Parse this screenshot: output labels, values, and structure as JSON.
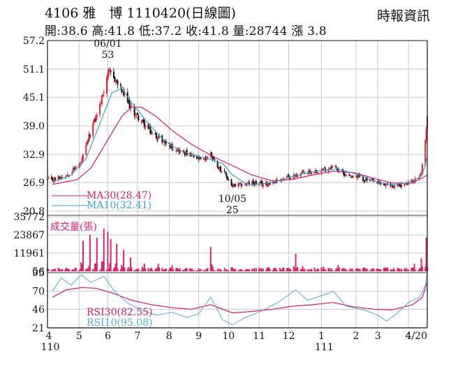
{
  "header": {
    "title": "4106 雅　博 1110420(日線圖)",
    "source": "時報資訊",
    "stats": "開:38.6 高:41.8 低:37.2 收:41.8 量:28744 漲 3.8"
  },
  "colors": {
    "up": "#e8243c",
    "down": "#111111",
    "ma30": "#d41e6e",
    "ma10": "#3aa0c8",
    "volume": "#d8246a",
    "rsi30": "#d41e6e",
    "rsi10": "#5aa8d8",
    "grid": "#c8c8c8"
  },
  "chart_data": [
    {
      "type": "candlestick",
      "panel": "price",
      "y_ticks": [
        "57.2",
        "51.1",
        "45.1",
        "39.0",
        "32.9",
        "26.9",
        "20.8"
      ],
      "ylim": [
        20.8,
        57.2
      ],
      "legend": [
        {
          "label": "MA30(28.47)",
          "color": "#d41e6e"
        },
        {
          "label": "MA10(32.41)",
          "color": "#3aa0c8"
        }
      ],
      "annotations": [
        {
          "text": "06/01",
          "date": "2021-06-01"
        },
        {
          "text": "53",
          "value": 53
        },
        {
          "text": "10/05",
          "date": "2021-10-05"
        },
        {
          "text": "25",
          "value": 25
        }
      ],
      "close_path": [
        [
          "2021-04-06",
          27.5
        ],
        [
          "2021-04-20",
          28.5
        ],
        [
          "2021-05-05",
          31.0
        ],
        [
          "2021-05-15",
          38.0
        ],
        [
          "2021-05-25",
          44.0
        ],
        [
          "2021-06-01",
          50.5
        ],
        [
          "2021-06-08",
          49.0
        ],
        [
          "2021-06-15",
          46.5
        ],
        [
          "2021-06-25",
          42.5
        ],
        [
          "2021-07-05",
          40.0
        ],
        [
          "2021-07-15",
          37.5
        ],
        [
          "2021-07-25",
          36.0
        ],
        [
          "2021-08-05",
          34.5
        ],
        [
          "2021-08-15",
          33.5
        ],
        [
          "2021-08-25",
          32.5
        ],
        [
          "2021-09-05",
          31.5
        ],
        [
          "2021-09-13",
          33.0
        ],
        [
          "2021-09-20",
          30.5
        ],
        [
          "2021-09-28",
          28.5
        ],
        [
          "2021-10-05",
          26.0
        ],
        [
          "2021-10-15",
          26.5
        ],
        [
          "2021-10-25",
          26.8
        ],
        [
          "2021-11-05",
          26.5
        ],
        [
          "2021-11-15",
          27.0
        ],
        [
          "2021-11-25",
          27.8
        ],
        [
          "2021-12-05",
          28.2
        ],
        [
          "2021-12-15",
          29.0
        ],
        [
          "2021-12-25",
          29.3
        ],
        [
          "2022-01-05",
          29.6
        ],
        [
          "2022-01-15",
          30.5
        ],
        [
          "2022-01-25",
          28.8
        ],
        [
          "2022-02-10",
          28.0
        ],
        [
          "2022-02-20",
          27.3
        ],
        [
          "2022-03-01",
          26.8
        ],
        [
          "2022-03-10",
          26.3
        ],
        [
          "2022-03-20",
          26.1
        ],
        [
          "2022-03-30",
          26.6
        ],
        [
          "2022-04-08",
          27.5
        ],
        [
          "2022-04-14",
          29.0
        ],
        [
          "2022-04-19",
          38.0
        ],
        [
          "2022-04-20",
          41.8
        ]
      ],
      "ma30_path": [
        [
          "2021-04-06",
          26.5
        ],
        [
          "2021-05-01",
          27.5
        ],
        [
          "2021-05-15",
          30.0
        ],
        [
          "2021-06-01",
          36.0
        ],
        [
          "2021-06-15",
          41.0
        ],
        [
          "2021-06-25",
          43.0
        ],
        [
          "2021-07-05",
          43.0
        ],
        [
          "2021-07-20",
          41.0
        ],
        [
          "2021-08-05",
          38.0
        ],
        [
          "2021-08-25",
          35.0
        ],
        [
          "2021-09-15",
          32.5
        ],
        [
          "2021-10-05",
          30.5
        ],
        [
          "2021-10-25",
          28.5
        ],
        [
          "2021-11-15",
          27.2
        ],
        [
          "2021-12-05",
          27.6
        ],
        [
          "2021-12-25",
          28.5
        ],
        [
          "2022-01-15",
          29.3
        ],
        [
          "2022-02-05",
          29.0
        ],
        [
          "2022-02-25",
          27.8
        ],
        [
          "2022-03-15",
          26.8
        ],
        [
          "2022-04-05",
          26.8
        ],
        [
          "2022-04-20",
          28.47
        ]
      ],
      "ma10_path": [
        [
          "2021-04-06",
          27.0
        ],
        [
          "2021-04-25",
          28.5
        ],
        [
          "2021-05-10",
          32.0
        ],
        [
          "2021-05-25",
          40.0
        ],
        [
          "2021-06-05",
          46.0
        ],
        [
          "2021-06-15",
          47.0
        ],
        [
          "2021-06-25",
          44.0
        ],
        [
          "2021-07-10",
          40.0
        ],
        [
          "2021-07-25",
          36.5
        ],
        [
          "2021-08-10",
          34.0
        ],
        [
          "2021-08-25",
          32.8
        ],
        [
          "2021-09-10",
          32.0
        ],
        [
          "2021-09-25",
          31.0
        ],
        [
          "2021-10-05",
          28.5
        ],
        [
          "2021-10-20",
          26.5
        ],
        [
          "2021-11-05",
          26.6
        ],
        [
          "2021-11-20",
          27.2
        ],
        [
          "2021-12-05",
          28.2
        ],
        [
          "2021-12-20",
          29.0
        ],
        [
          "2022-01-05",
          29.5
        ],
        [
          "2022-01-20",
          29.8
        ],
        [
          "2022-02-10",
          28.5
        ],
        [
          "2022-02-25",
          27.3
        ],
        [
          "2022-03-15",
          26.4
        ],
        [
          "2022-04-05",
          27.0
        ],
        [
          "2022-04-15",
          28.5
        ],
        [
          "2022-04-20",
          32.41
        ]
      ]
    },
    {
      "type": "bar",
      "panel": "volume",
      "legend": "成交量(張)",
      "y_ticks": [
        "35772",
        "23867",
        "11961",
        "56"
      ],
      "ylim": [
        56,
        35772
      ],
      "spikes": [
        [
          "2021-05-07",
          20000
        ],
        [
          "2021-05-14",
          24000
        ],
        [
          "2021-05-21",
          22000
        ],
        [
          "2021-05-28",
          28000
        ],
        [
          "2021-06-01",
          26000
        ],
        [
          "2021-06-04",
          21000
        ],
        [
          "2021-06-10",
          18000
        ],
        [
          "2021-06-17",
          14000
        ],
        [
          "2021-06-24",
          9000
        ],
        [
          "2021-07-08",
          5000
        ],
        [
          "2021-07-22",
          5000
        ],
        [
          "2021-08-05",
          4000
        ],
        [
          "2021-09-13",
          16000
        ],
        [
          "2021-10-05",
          2500
        ],
        [
          "2021-11-10",
          2500
        ],
        [
          "2021-12-08",
          11500
        ],
        [
          "2021-12-15",
          3500
        ],
        [
          "2022-01-05",
          3000
        ],
        [
          "2022-01-20",
          4000
        ],
        [
          "2022-02-15",
          2500
        ],
        [
          "2022-03-10",
          2500
        ],
        [
          "2022-04-07",
          5000
        ],
        [
          "2022-04-14",
          8500
        ],
        [
          "2022-04-19",
          22000
        ],
        [
          "2022-04-20",
          28744
        ]
      ]
    },
    {
      "type": "line",
      "panel": "rsi",
      "y_ticks": [
        "95",
        "70",
        "46",
        "21"
      ],
      "ylim": [
        21,
        95
      ],
      "series": [
        {
          "name": "RSI30(82.55)",
          "points": [
            [
              "2021-04-06",
              62
            ],
            [
              "2021-04-20",
              72
            ],
            [
              "2021-05-05",
              75
            ],
            [
              "2021-05-20",
              74
            ],
            [
              "2021-06-05",
              68
            ],
            [
              "2021-06-25",
              58
            ],
            [
              "2021-07-15",
              52
            ],
            [
              "2021-08-05",
              48
            ],
            [
              "2021-08-25",
              46
            ],
            [
              "2021-09-13",
              52
            ],
            [
              "2021-10-05",
              41
            ],
            [
              "2021-10-25",
              43
            ],
            [
              "2021-11-15",
              46
            ],
            [
              "2021-12-05",
              50
            ],
            [
              "2021-12-25",
              52
            ],
            [
              "2022-01-15",
              55
            ],
            [
              "2022-02-05",
              49
            ],
            [
              "2022-02-25",
              46
            ],
            [
              "2022-03-15",
              45
            ],
            [
              "2022-04-05",
              52
            ],
            [
              "2022-04-15",
              62
            ],
            [
              "2022-04-20",
              82.55
            ]
          ]
        },
        {
          "name": "RSI10(95.08)",
          "points": [
            [
              "2021-04-06",
              70
            ],
            [
              "2021-04-15",
              88
            ],
            [
              "2021-04-25",
              78
            ],
            [
              "2021-05-05",
              92
            ],
            [
              "2021-05-15",
              82
            ],
            [
              "2021-05-28",
              90
            ],
            [
              "2021-06-08",
              70
            ],
            [
              "2021-06-20",
              55
            ],
            [
              "2021-07-05",
              45
            ],
            [
              "2021-07-20",
              38
            ],
            [
              "2021-08-05",
              42
            ],
            [
              "2021-08-20",
              35
            ],
            [
              "2021-09-01",
              40
            ],
            [
              "2021-09-13",
              62
            ],
            [
              "2021-09-25",
              32
            ],
            [
              "2021-10-05",
              25
            ],
            [
              "2021-10-18",
              35
            ],
            [
              "2021-11-01",
              42
            ],
            [
              "2021-11-20",
              55
            ],
            [
              "2021-12-08",
              72
            ],
            [
              "2021-12-20",
              58
            ],
            [
              "2022-01-05",
              65
            ],
            [
              "2022-01-15",
              70
            ],
            [
              "2022-01-28",
              50
            ],
            [
              "2022-02-15",
              45
            ],
            [
              "2022-03-01",
              38
            ],
            [
              "2022-03-10",
              30
            ],
            [
              "2022-03-20",
              40
            ],
            [
              "2022-04-01",
              55
            ],
            [
              "2022-04-12",
              62
            ],
            [
              "2022-04-18",
              78
            ],
            [
              "2022-04-20",
              95.08
            ]
          ]
        }
      ]
    }
  ],
  "x_axis": {
    "labels": [
      {
        "text": "4",
        "date": "2021-04-01"
      },
      {
        "text": "5",
        "date": "2021-05-03"
      },
      {
        "text": "6",
        "date": "2021-06-01"
      },
      {
        "text": "7",
        "date": "2021-07-01"
      },
      {
        "text": "8",
        "date": "2021-08-02"
      },
      {
        "text": "9",
        "date": "2021-09-01"
      },
      {
        "text": "10",
        "date": "2021-10-01"
      },
      {
        "text": "11",
        "date": "2021-11-01"
      },
      {
        "text": "12",
        "date": "2021-12-01"
      },
      {
        "text": "1",
        "date": "2022-01-03"
      },
      {
        "text": "2",
        "date": "2022-02-07"
      },
      {
        "text": "3",
        "date": "2022-03-01"
      },
      {
        "text": "4",
        "date": "2022-04-01"
      },
      {
        "text": "4/20",
        "date": "2022-04-20"
      }
    ],
    "year_labels": [
      {
        "text": "110",
        "date": "2021-04-01"
      },
      {
        "text": "111",
        "date": "2022-01-03"
      }
    ]
  }
}
